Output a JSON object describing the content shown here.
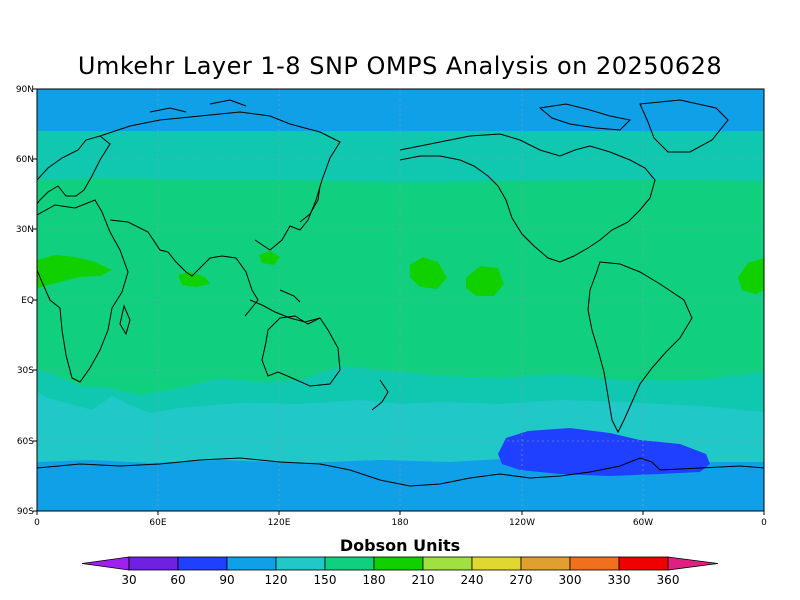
{
  "title": "Umkehr Layer 1-8 SNP OMPS Analysis on 20250628",
  "map": {
    "lat_labels": [
      "90N",
      "60N",
      "30N",
      "EQ",
      "30S",
      "60S",
      "90S"
    ],
    "lon_labels": [
      "0",
      "60E",
      "120E",
      "180",
      "120W",
      "60W",
      "0"
    ]
  },
  "colorbar": {
    "title": "Dobson Units",
    "ticks": [
      "30",
      "60",
      "90",
      "120",
      "150",
      "180",
      "210",
      "240",
      "270",
      "300",
      "330",
      "360"
    ],
    "colors": [
      "#a020f0",
      "#7020e0",
      "#2040ff",
      "#10a0e8",
      "#20c8c8",
      "#10d080",
      "#10d000",
      "#a0e040",
      "#e0d830",
      "#e0a030",
      "#f07020",
      "#f00000",
      "#e02080"
    ]
  },
  "chart_data": {
    "type": "heatmap",
    "title": "Umkehr Layer 1-8 SNP OMPS Analysis on 20250628",
    "colorbar_label": "Dobson Units",
    "levels": [
      30,
      60,
      90,
      120,
      150,
      180,
      210,
      240,
      270,
      300,
      330,
      360
    ],
    "zones": [
      {
        "lat_range": [
          72,
          90
        ],
        "value_range": [
          90,
          120
        ]
      },
      {
        "lat_range": [
          50,
          72
        ],
        "value_range": [
          150,
          180
        ]
      },
      {
        "lat_range": [
          -35,
          50
        ],
        "value_range": [
          180,
          210
        ]
      },
      {
        "lat_range": [
          -52,
          -35
        ],
        "value_range": [
          150,
          180
        ]
      },
      {
        "lat_range": [
          -68,
          -52
        ],
        "value_range": [
          120,
          150
        ]
      },
      {
        "lat_range": [
          -90,
          -68
        ],
        "value_range": [
          90,
          120
        ]
      }
    ]
  }
}
